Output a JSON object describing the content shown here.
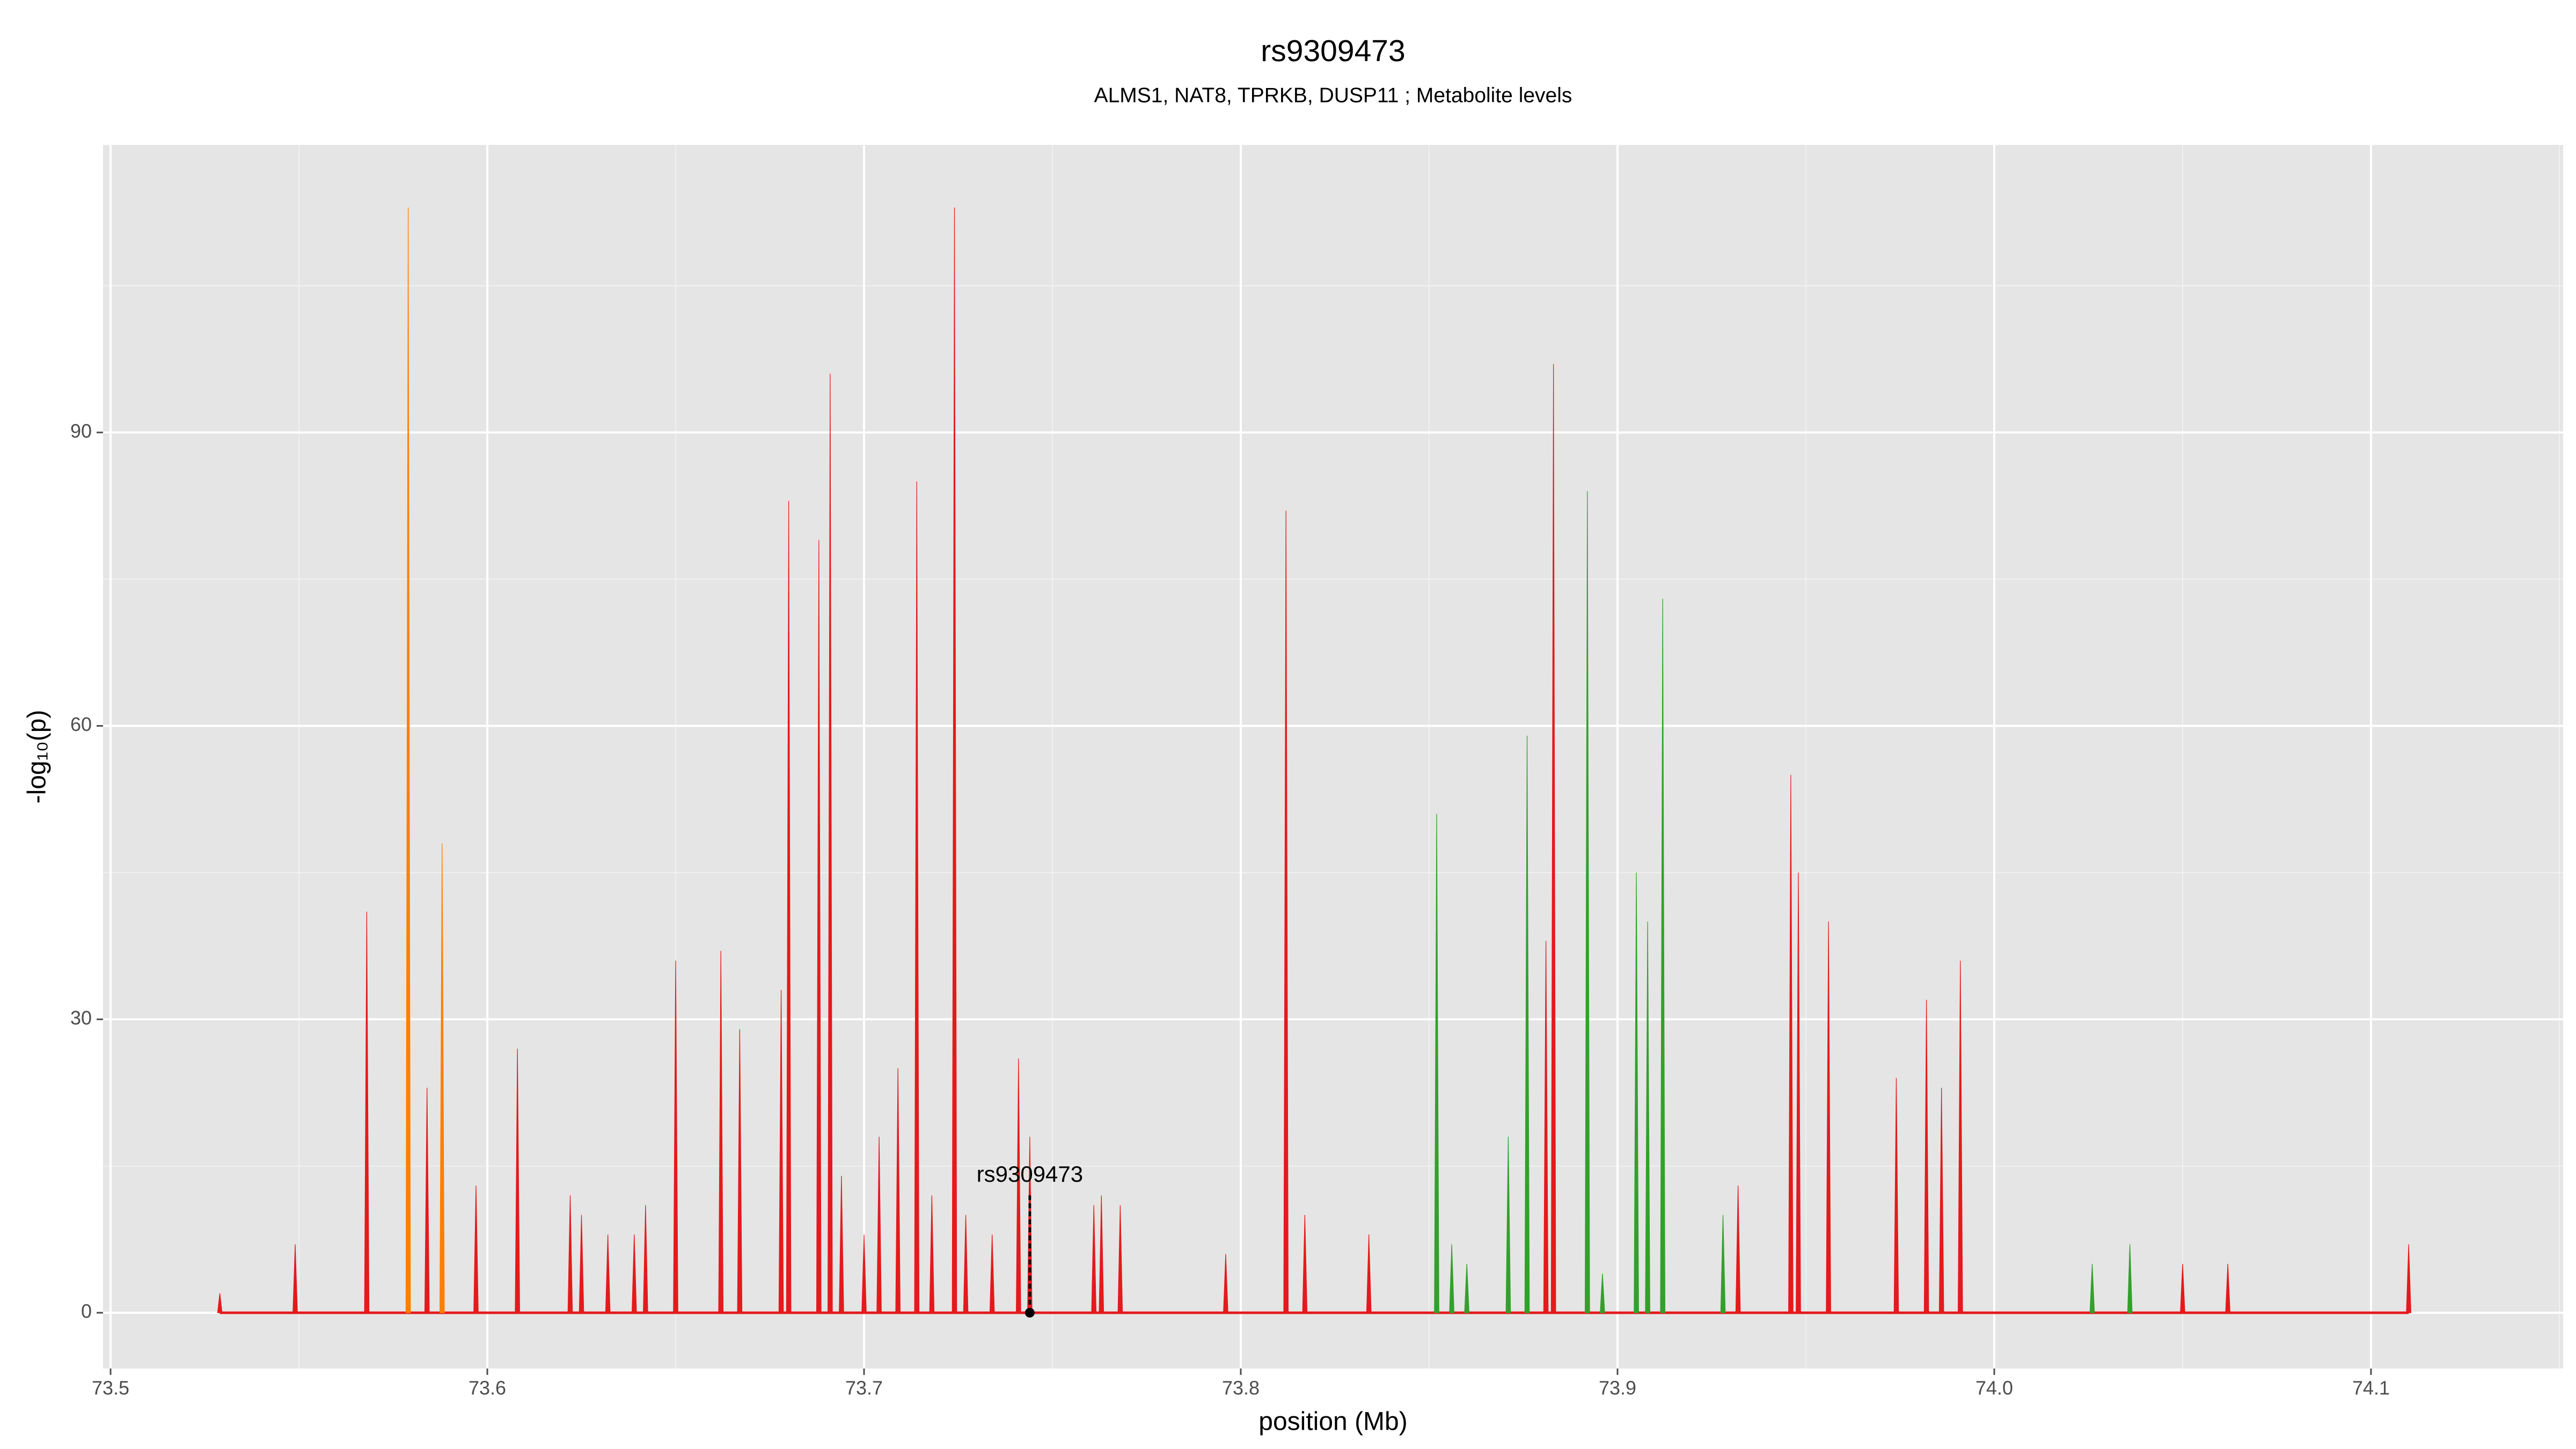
{
  "chart_data": {
    "type": "spike",
    "title": "rs9309473",
    "subtitle": "ALMS1, NAT8, TPRKB, DUSP11 ; Metabolite levels",
    "x_label": "position (Mb)",
    "y_label": "-log₁₀(p)",
    "xlim": [
      73.498,
      74.151
    ],
    "ylim": [
      -5.7,
      119.4
    ],
    "xticks": [
      {
        "value": 73.5,
        "label": "73.5"
      },
      73.6,
      73.7,
      73.8,
      73.9,
      {
        "value": 74.0,
        "label": "74.0"
      },
      74.1
    ],
    "yticks": [
      0,
      30,
      60,
      90
    ],
    "grid": true,
    "background": "#e5e5e5",
    "series": [
      {
        "color": "#e41a1c",
        "x": [
          73.529,
          73.549,
          73.568,
          73.584,
          73.597,
          73.608,
          73.622,
          73.625,
          73.632,
          73.639,
          73.642,
          73.65,
          73.662,
          73.667,
          73.678,
          73.68,
          73.688,
          73.691,
          73.694,
          73.7,
          73.704,
          73.709,
          73.714,
          73.718,
          73.724,
          73.727,
          73.734,
          73.741,
          73.744,
          73.761,
          73.763,
          73.768,
          73.796,
          73.812,
          73.817,
          73.834,
          73.881,
          73.883,
          73.932,
          73.946,
          73.948,
          73.956,
          73.974,
          73.982,
          73.986,
          73.991,
          74.05,
          74.062,
          74.11
        ],
        "values": [
          2,
          7,
          41,
          23,
          13,
          27,
          12,
          10,
          8,
          8,
          11,
          36,
          37,
          29,
          33,
          83,
          79,
          96,
          14,
          8,
          18,
          25,
          85,
          12,
          113,
          10,
          8,
          26,
          18,
          11,
          12,
          11,
          6,
          82,
          10,
          8,
          38,
          97,
          13,
          55,
          45,
          40,
          24,
          32,
          23,
          36,
          5,
          5,
          7
        ]
      },
      {
        "color": "#ff7f00",
        "x": [
          73.579,
          73.588
        ],
        "values": [
          113,
          48
        ]
      },
      {
        "color": "#33a02c",
        "x": [
          73.852,
          73.856,
          73.86,
          73.871,
          73.876,
          73.892,
          73.896,
          73.905,
          73.908,
          73.912,
          73.928,
          74.026,
          74.036
        ],
        "values": [
          51,
          7,
          5,
          18,
          59,
          84,
          4,
          45,
          40,
          73,
          10,
          5,
          7
        ]
      }
    ],
    "annotation": {
      "label": "rs9309473",
      "x": 73.744,
      "y": 0
    }
  }
}
